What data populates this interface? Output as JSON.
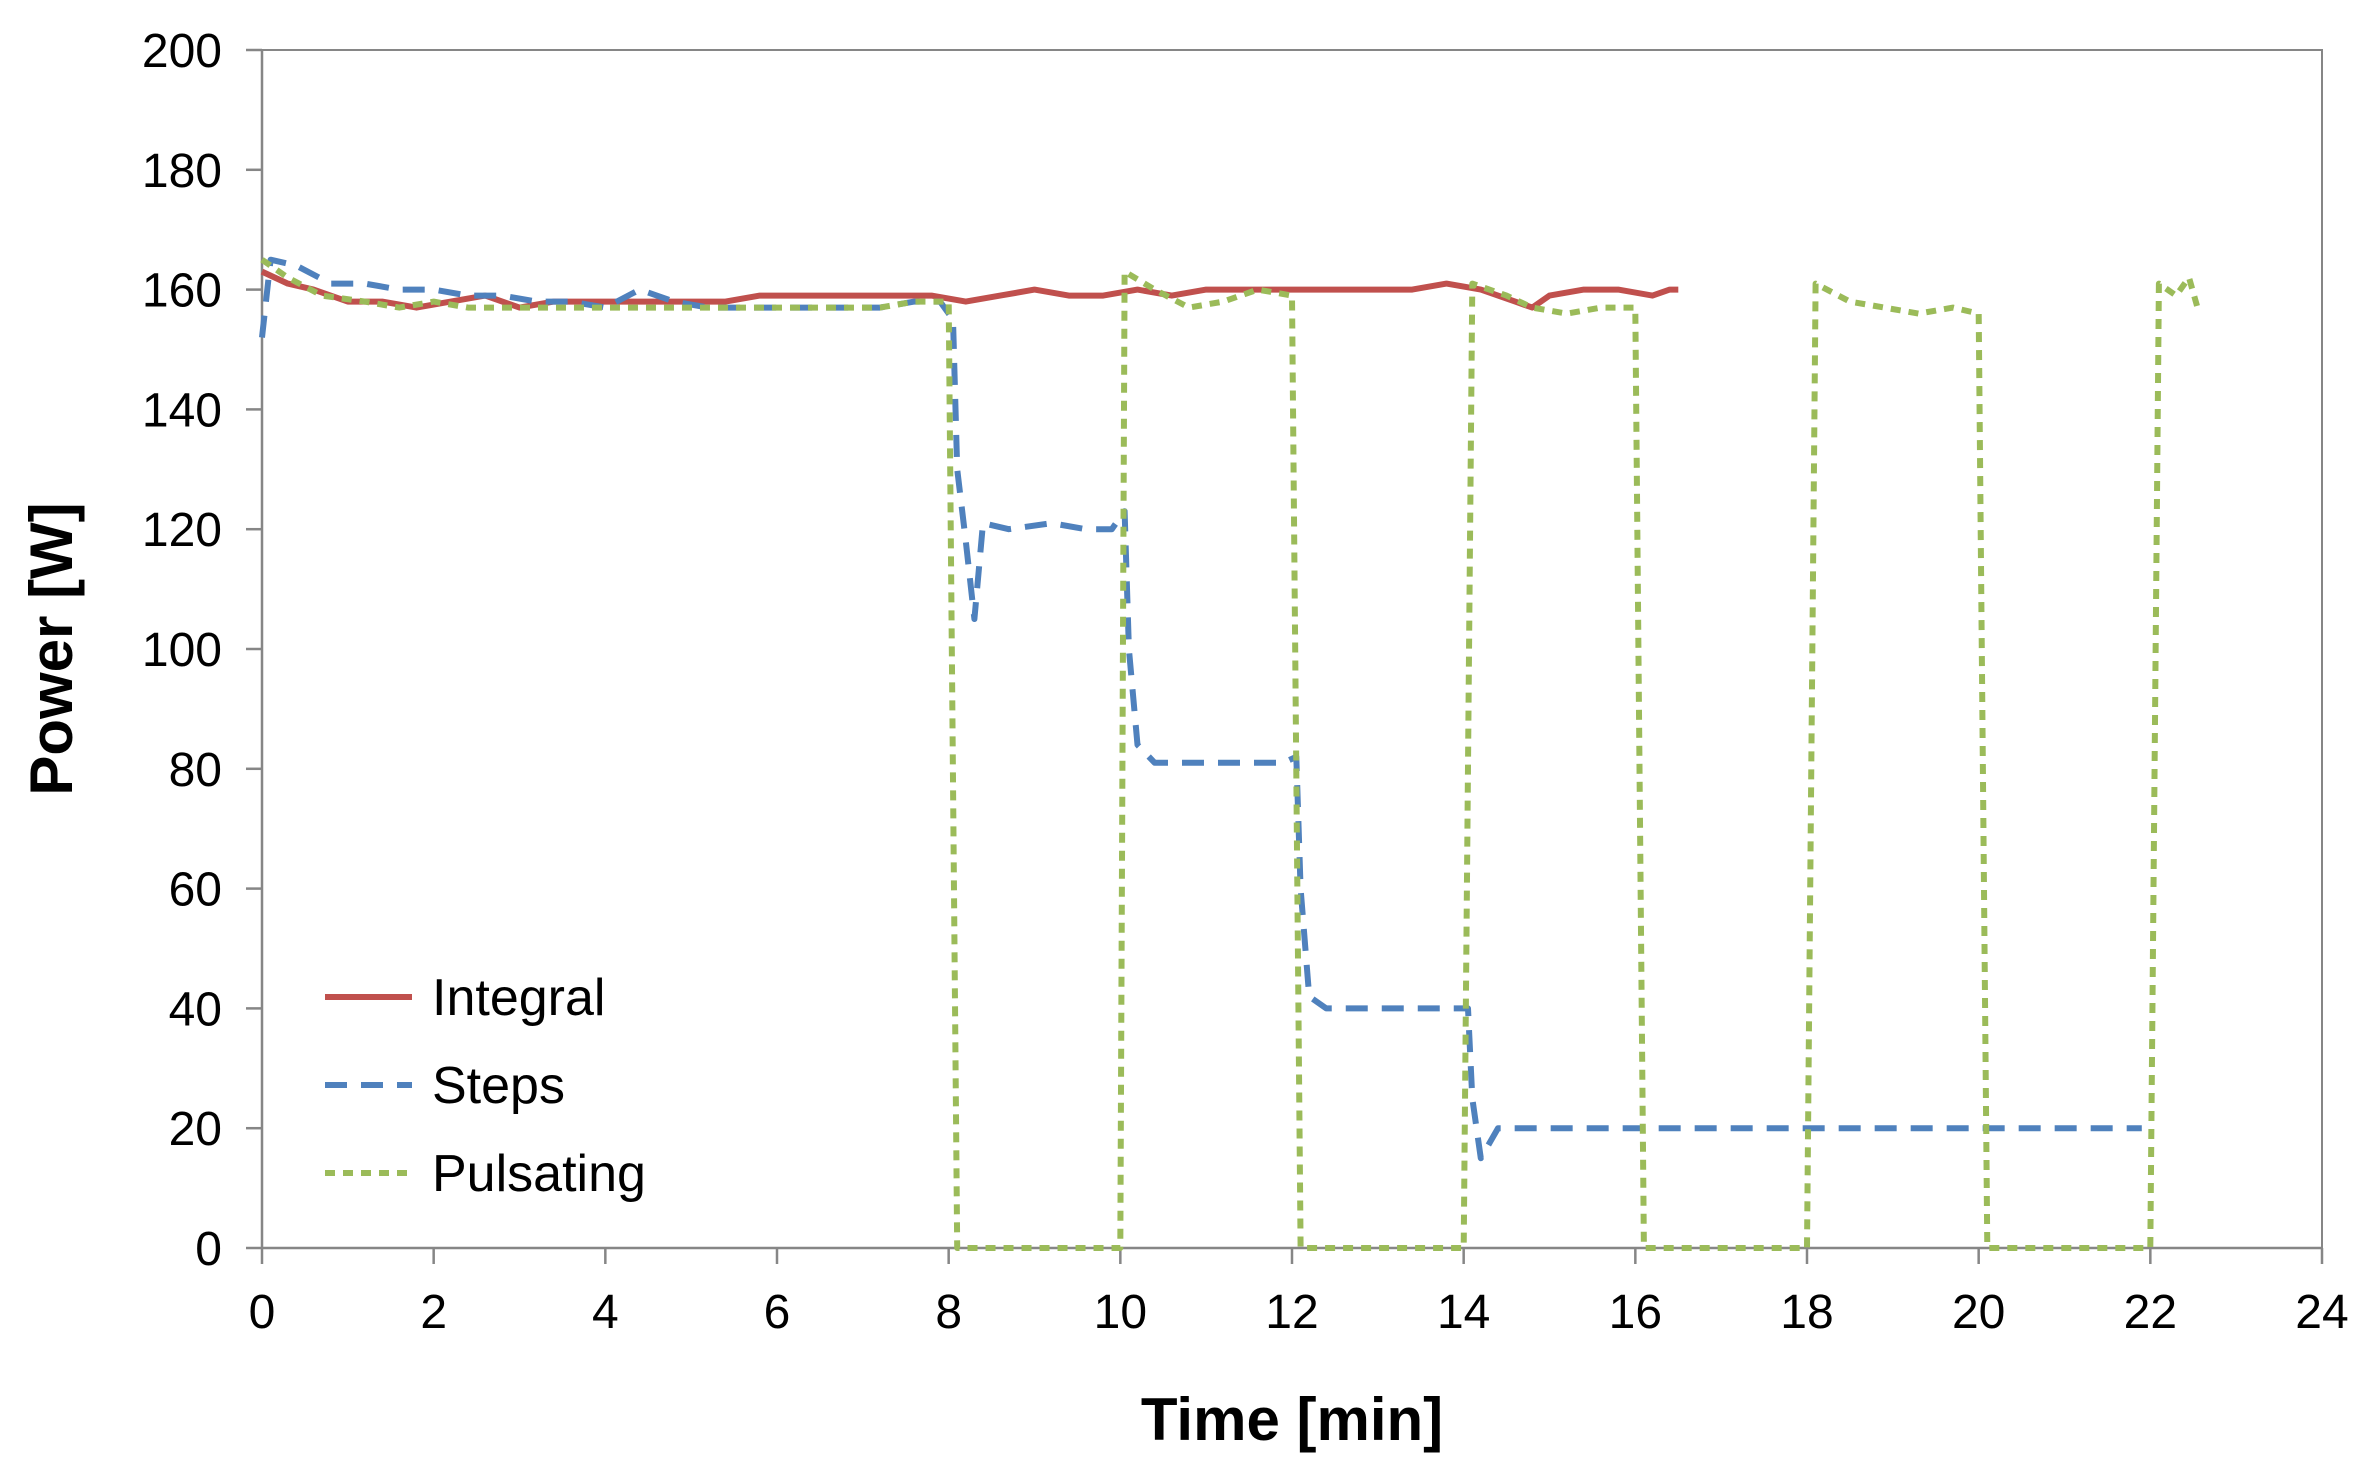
{
  "chart_data": {
    "type": "line",
    "title": "",
    "xlabel": "Time [min]",
    "ylabel": "Power [W]",
    "xlim": [
      0,
      24
    ],
    "ylim": [
      0,
      200
    ],
    "xticks": [
      0,
      2,
      4,
      6,
      8,
      10,
      12,
      14,
      16,
      18,
      20,
      22,
      24
    ],
    "yticks": [
      0,
      20,
      40,
      60,
      80,
      100,
      120,
      140,
      160,
      180,
      200
    ],
    "grid": false,
    "legend_position": "bottom-left",
    "series": [
      {
        "name": "Integral",
        "color": "#c0504d",
        "style": "solid",
        "points": [
          [
            0,
            163
          ],
          [
            0.3,
            161
          ],
          [
            0.6,
            160
          ],
          [
            1,
            158
          ],
          [
            1.4,
            158
          ],
          [
            1.8,
            157
          ],
          [
            2.2,
            158
          ],
          [
            2.6,
            159
          ],
          [
            3,
            157
          ],
          [
            3.4,
            158
          ],
          [
            3.8,
            158
          ],
          [
            4.2,
            158
          ],
          [
            4.6,
            158
          ],
          [
            5,
            158
          ],
          [
            5.4,
            158
          ],
          [
            5.8,
            159
          ],
          [
            6.2,
            159
          ],
          [
            6.6,
            159
          ],
          [
            7,
            159
          ],
          [
            7.4,
            159
          ],
          [
            7.8,
            159
          ],
          [
            8.2,
            158
          ],
          [
            8.6,
            159
          ],
          [
            9,
            160
          ],
          [
            9.4,
            159
          ],
          [
            9.8,
            159
          ],
          [
            10.2,
            160
          ],
          [
            10.6,
            159
          ],
          [
            11,
            160
          ],
          [
            11.4,
            160
          ],
          [
            11.8,
            160
          ],
          [
            12.2,
            160
          ],
          [
            12.6,
            160
          ],
          [
            13,
            160
          ],
          [
            13.4,
            160
          ],
          [
            13.8,
            161
          ],
          [
            14.2,
            160
          ],
          [
            14.6,
            158
          ],
          [
            14.8,
            157
          ],
          [
            15,
            159
          ],
          [
            15.4,
            160
          ],
          [
            15.8,
            160
          ],
          [
            16.2,
            159
          ],
          [
            16.4,
            160
          ],
          [
            16.5,
            160
          ]
        ]
      },
      {
        "name": "Steps",
        "color": "#4f81bd",
        "style": "dashed",
        "points": [
          [
            0,
            152
          ],
          [
            0.1,
            165
          ],
          [
            0.4,
            164
          ],
          [
            0.8,
            161
          ],
          [
            1.2,
            161
          ],
          [
            1.6,
            160
          ],
          [
            2,
            160
          ],
          [
            2.4,
            159
          ],
          [
            2.8,
            159
          ],
          [
            3.2,
            158
          ],
          [
            3.6,
            158
          ],
          [
            4,
            157
          ],
          [
            4.4,
            160
          ],
          [
            4.8,
            158
          ],
          [
            5.2,
            157
          ],
          [
            5.6,
            157
          ],
          [
            6,
            157
          ],
          [
            6.4,
            157
          ],
          [
            6.8,
            157
          ],
          [
            7.2,
            157
          ],
          [
            7.6,
            158
          ],
          [
            7.9,
            158
          ],
          [
            8.05,
            155
          ],
          [
            8.1,
            130
          ],
          [
            8.2,
            118
          ],
          [
            8.3,
            105
          ],
          [
            8.4,
            121
          ],
          [
            8.7,
            120
          ],
          [
            9.2,
            121
          ],
          [
            9.6,
            120
          ],
          [
            9.9,
            120
          ],
          [
            10.05,
            123
          ],
          [
            10.1,
            100
          ],
          [
            10.2,
            84
          ],
          [
            10.4,
            81
          ],
          [
            10.8,
            81
          ],
          [
            11.2,
            81
          ],
          [
            11.6,
            81
          ],
          [
            11.9,
            81
          ],
          [
            12.05,
            82
          ],
          [
            12.1,
            60
          ],
          [
            12.2,
            42
          ],
          [
            12.4,
            40
          ],
          [
            12.8,
            40
          ],
          [
            13.2,
            40
          ],
          [
            13.6,
            40
          ],
          [
            13.9,
            40
          ],
          [
            14.05,
            40
          ],
          [
            14.1,
            25
          ],
          [
            14.2,
            15
          ],
          [
            14.4,
            20
          ],
          [
            14.8,
            20
          ],
          [
            15.2,
            20
          ],
          [
            15.6,
            20
          ],
          [
            16,
            20
          ],
          [
            16.4,
            20
          ],
          [
            16.8,
            20
          ],
          [
            17.2,
            20
          ],
          [
            17.6,
            20
          ],
          [
            18,
            20
          ],
          [
            18.4,
            20
          ],
          [
            18.8,
            20
          ],
          [
            19.2,
            20
          ],
          [
            19.6,
            20
          ],
          [
            20,
            20
          ],
          [
            20.4,
            20
          ],
          [
            20.8,
            20
          ],
          [
            21.2,
            20
          ],
          [
            21.6,
            20
          ],
          [
            21.9,
            20
          ]
        ]
      },
      {
        "name": "Pulsating",
        "color": "#9bbb59",
        "style": "dotted",
        "points": [
          [
            0,
            165
          ],
          [
            0.3,
            162
          ],
          [
            0.7,
            159
          ],
          [
            1.2,
            158
          ],
          [
            1.6,
            157
          ],
          [
            2,
            158
          ],
          [
            2.4,
            157
          ],
          [
            2.8,
            157
          ],
          [
            3.2,
            157
          ],
          [
            3.6,
            157
          ],
          [
            4,
            157
          ],
          [
            4.4,
            157
          ],
          [
            4.8,
            157
          ],
          [
            5.2,
            157
          ],
          [
            5.6,
            157
          ],
          [
            6,
            157
          ],
          [
            6.4,
            157
          ],
          [
            6.8,
            157
          ],
          [
            7.2,
            157
          ],
          [
            7.6,
            158
          ],
          [
            8,
            158
          ],
          [
            8.1,
            0
          ],
          [
            10,
            0
          ],
          [
            10.05,
            163
          ],
          [
            10.4,
            160
          ],
          [
            10.8,
            157
          ],
          [
            11.2,
            158
          ],
          [
            11.6,
            160
          ],
          [
            12,
            159
          ],
          [
            12.1,
            0
          ],
          [
            14,
            0
          ],
          [
            14.1,
            161
          ],
          [
            14.5,
            159
          ],
          [
            14.8,
            157
          ],
          [
            15.2,
            156
          ],
          [
            15.6,
            157
          ],
          [
            16,
            157
          ],
          [
            16.1,
            0
          ],
          [
            18,
            0
          ],
          [
            18.1,
            161
          ],
          [
            18.5,
            158
          ],
          [
            18.9,
            157
          ],
          [
            19.3,
            156
          ],
          [
            19.7,
            157
          ],
          [
            20,
            156
          ],
          [
            20.1,
            0
          ],
          [
            22,
            0
          ],
          [
            22.1,
            161
          ],
          [
            22.3,
            159
          ],
          [
            22.45,
            162
          ],
          [
            22.55,
            157
          ]
        ]
      }
    ]
  }
}
